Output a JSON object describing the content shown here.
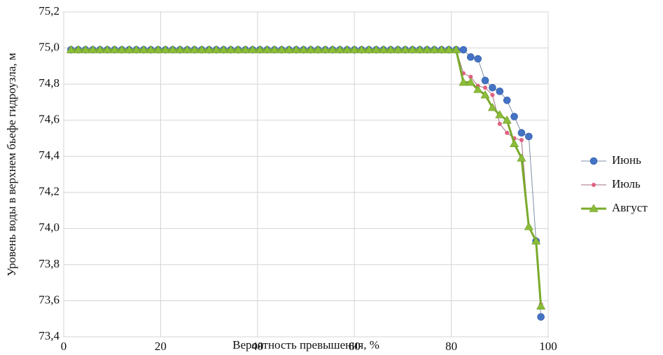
{
  "chart_data": {
    "type": "line",
    "x_label": "Вероятность превышения, %",
    "y_label": "Уровень воды в верхнем бьефе гидроузла, м",
    "x": [
      1.5,
      3,
      4.5,
      6,
      7.5,
      9,
      10.5,
      12,
      13.5,
      15,
      16.5,
      18,
      19.5,
      21,
      22.5,
      24,
      25.5,
      27,
      28.5,
      30,
      31.5,
      33,
      34.5,
      36,
      37.5,
      39,
      40.5,
      42,
      43.5,
      45,
      46.5,
      48,
      49.5,
      51,
      52.5,
      54,
      55.5,
      57,
      58.5,
      60,
      61.5,
      63,
      64.5,
      66,
      67.5,
      69,
      70.5,
      72,
      73.5,
      75,
      76.5,
      78,
      79.5,
      81,
      82.5,
      84,
      85.5,
      87,
      88.5,
      90,
      91.5,
      93,
      94.5,
      96,
      97.5,
      98.5
    ],
    "series": [
      {
        "name": "Июнь",
        "color": "#4472c4",
        "line_color": "#7f8fa8",
        "marker": "circle",
        "values": [
          74.99,
          74.99,
          74.99,
          74.99,
          74.99,
          74.99,
          74.99,
          74.99,
          74.99,
          74.99,
          74.99,
          74.99,
          74.99,
          74.99,
          74.99,
          74.99,
          74.99,
          74.99,
          74.99,
          74.99,
          74.99,
          74.99,
          74.99,
          74.99,
          74.99,
          74.99,
          74.99,
          74.99,
          74.99,
          74.99,
          74.99,
          74.99,
          74.99,
          74.99,
          74.99,
          74.99,
          74.99,
          74.99,
          74.99,
          74.99,
          74.99,
          74.99,
          74.99,
          74.99,
          74.99,
          74.99,
          74.99,
          74.99,
          74.99,
          74.99,
          74.99,
          74.99,
          74.99,
          74.99,
          74.99,
          74.95,
          74.94,
          74.82,
          74.78,
          74.76,
          74.71,
          74.62,
          74.53,
          74.51,
          73.93,
          73.51
        ]
      },
      {
        "name": "Июль",
        "color": "#e06080",
        "line_color": "#a07080",
        "marker": "dot",
        "values": [
          74.99,
          74.99,
          74.99,
          74.99,
          74.99,
          74.99,
          74.99,
          74.99,
          74.99,
          74.99,
          74.99,
          74.99,
          74.99,
          74.99,
          74.99,
          74.99,
          74.99,
          74.99,
          74.99,
          74.99,
          74.99,
          74.99,
          74.99,
          74.99,
          74.99,
          74.99,
          74.99,
          74.99,
          74.99,
          74.99,
          74.99,
          74.99,
          74.99,
          74.99,
          74.99,
          74.99,
          74.99,
          74.99,
          74.99,
          74.99,
          74.99,
          74.99,
          74.99,
          74.99,
          74.99,
          74.99,
          74.99,
          74.99,
          74.99,
          74.99,
          74.99,
          74.99,
          74.99,
          74.99,
          74.86,
          74.84,
          74.79,
          74.78,
          74.74,
          74.58,
          74.53,
          74.5,
          74.49,
          74.01,
          73.93,
          73.58
        ]
      },
      {
        "name": "Август",
        "color": "#8cbd3a",
        "line_color": "#7aaa2a",
        "marker": "triangle",
        "values": [
          74.99,
          74.99,
          74.99,
          74.99,
          74.99,
          74.99,
          74.99,
          74.99,
          74.99,
          74.99,
          74.99,
          74.99,
          74.99,
          74.99,
          74.99,
          74.99,
          74.99,
          74.99,
          74.99,
          74.99,
          74.99,
          74.99,
          74.99,
          74.99,
          74.99,
          74.99,
          74.99,
          74.99,
          74.99,
          74.99,
          74.99,
          74.99,
          74.99,
          74.99,
          74.99,
          74.99,
          74.99,
          74.99,
          74.99,
          74.99,
          74.99,
          74.99,
          74.99,
          74.99,
          74.99,
          74.99,
          74.99,
          74.99,
          74.99,
          74.99,
          74.99,
          74.99,
          74.99,
          74.99,
          74.81,
          74.81,
          74.77,
          74.74,
          74.67,
          74.63,
          74.6,
          74.47,
          74.39,
          74.01,
          73.93,
          73.57
        ]
      }
    ],
    "xlim": [
      0,
      100
    ],
    "xticks": [
      0,
      20,
      40,
      60,
      80,
      100
    ],
    "ylim": [
      73.4,
      75.2
    ],
    "yticks": [
      {
        "value": 73.4,
        "label": "73,4"
      },
      {
        "value": 73.6,
        "label": "73,6"
      },
      {
        "value": 73.8,
        "label": "73,8"
      },
      {
        "value": 74.0,
        "label": "74,0"
      },
      {
        "value": 74.2,
        "label": "74,2"
      },
      {
        "value": 74.4,
        "label": "74,4"
      },
      {
        "value": 74.6,
        "label": "74,6"
      },
      {
        "value": 74.8,
        "label": "74,8"
      },
      {
        "value": 75.0,
        "label": "75,0"
      },
      {
        "value": 75.2,
        "label": "75,2"
      }
    ],
    "grid": true,
    "legend": "right"
  }
}
